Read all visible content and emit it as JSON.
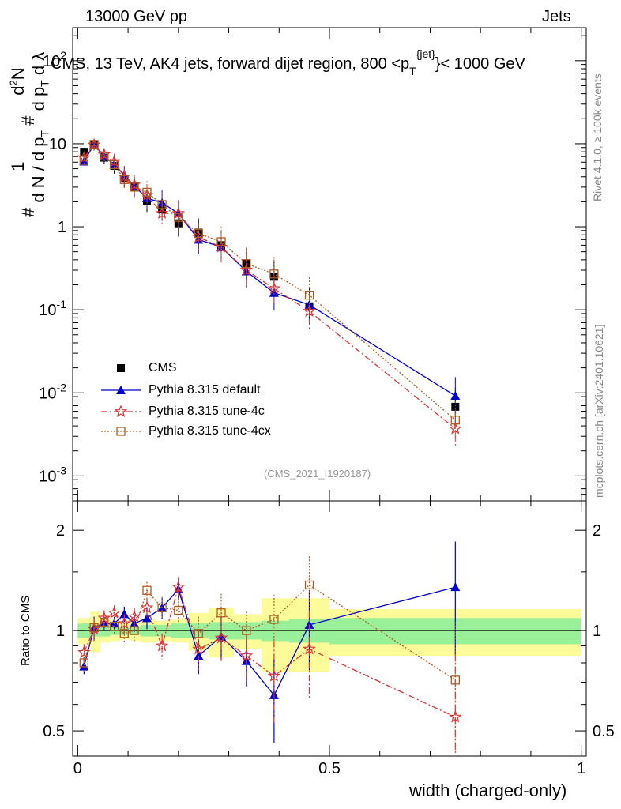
{
  "header": {
    "energy_label": "13000 GeV pp",
    "process_label": "Jets",
    "title_main": "CMS, 13 TeV, AK4 jets, forward dijet region, 800 <p",
    "title_sub": "T",
    "title_sup": "{jet}",
    "title_end": "}< 1000 GeV",
    "rivet_label": "Rivet 4.1.0, ≥ 100k events",
    "mcplots_label": "mcplots.cern.ch [arXiv:2401.10621]",
    "analysis_label": "(CMS_2021_I1920187)"
  },
  "y_title": {
    "hash1": "#",
    "one": "1",
    "dn": "d N / d p",
    "dn_sub": "T",
    "hash2": "#",
    "d2n": "d",
    "d2n_sup": "2",
    "d2n_end": "N",
    "dpt": "d p",
    "dpt_sub": "T",
    "dlambda": "d λ"
  },
  "legend": {
    "items": [
      {
        "label": "CMS",
        "color": "#000000"
      },
      {
        "label": "Pythia 8.315 default",
        "color": "#0000cc"
      },
      {
        "label": "Pythia 8.315 tune-4c",
        "color": "#dd3333"
      },
      {
        "label": "Pythia 8.315 tune-4cx",
        "color": "#b35a1f"
      }
    ]
  },
  "ratio_title": "Ratio to CMS",
  "x_title": "width (charged-only)",
  "chart_data": {
    "type": "scatter",
    "x": [
      0.0125,
      0.0325,
      0.0525,
      0.0725,
      0.0925,
      0.1125,
      0.1375,
      0.1675,
      0.2,
      0.24,
      0.285,
      0.335,
      0.39,
      0.46,
      0.75
    ],
    "main": {
      "ylabel": "1/(dN/dpT) d²N/(dpT dλ)",
      "yscale": "log",
      "ylim": [
        0.0005,
        250
      ],
      "y_ticks": [
        "10^-3",
        "10^-2",
        "10^-1",
        "1",
        "10",
        "10^2"
      ],
      "series": [
        {
          "name": "CMS",
          "values": [
            8.0,
            9.6,
            6.8,
            5.4,
            3.8,
            3.0,
            2.05,
            1.65,
            1.1,
            0.85,
            0.6,
            0.36,
            0.25,
            0.11,
            0.0068
          ]
        },
        {
          "name": "Pythia 8.315 default",
          "values": [
            6.1,
            9.8,
            7.0,
            5.6,
            4.2,
            3.1,
            2.2,
            1.95,
            1.45,
            0.7,
            0.57,
            0.29,
            0.16,
            0.115,
            0.0092
          ]
        },
        {
          "name": "Pythia 8.315 tune-4c",
          "values": [
            6.8,
            9.7,
            7.4,
            6.1,
            4.0,
            3.2,
            2.4,
            1.45,
            1.45,
            0.75,
            0.57,
            0.3,
            0.18,
            0.096,
            0.0037
          ]
        },
        {
          "name": "Pythia 8.315 tune-4cx",
          "values": [
            6.3,
            9.8,
            7.1,
            5.6,
            3.7,
            3.0,
            2.6,
            1.85,
            1.3,
            0.83,
            0.66,
            0.36,
            0.27,
            0.15,
            0.0047
          ]
        }
      ]
    },
    "ratio": {
      "ylabel": "Ratio to CMS",
      "yscale": "log",
      "ylim": [
        0.42,
        2.45
      ],
      "y_ticks": [
        "0.5",
        "1",
        "2"
      ],
      "x_ticks": [
        "0",
        "0.5",
        "1"
      ],
      "xlim": [
        -0.01,
        1.01
      ],
      "series": [
        {
          "name": "Pythia 8.315 default",
          "values": [
            0.78,
            1.02,
            1.05,
            1.05,
            1.12,
            1.05,
            1.09,
            1.17,
            1.33,
            0.84,
            0.96,
            0.81,
            0.64,
            1.04,
            1.35
          ],
          "errors": [
            0.04,
            0.08,
            0.05,
            0.05,
            0.06,
            0.06,
            0.08,
            0.09,
            0.1,
            0.1,
            0.14,
            0.13,
            0.18,
            0.28,
            0.5
          ]
        },
        {
          "name": "Pythia 8.315 tune-4c",
          "values": [
            0.86,
            1.01,
            1.09,
            1.13,
            1.05,
            1.1,
            1.17,
            0.9,
            1.35,
            0.88,
            0.95,
            0.84,
            0.73,
            0.88,
            0.55
          ],
          "errors": [
            0.05,
            0.08,
            0.06,
            0.06,
            0.07,
            0.07,
            0.08,
            0.08,
            0.1,
            0.12,
            0.14,
            0.14,
            0.2,
            0.26,
            0.3
          ]
        },
        {
          "name": "Pythia 8.315 tune-4cx",
          "values": [
            0.8,
            1.02,
            1.06,
            1.03,
            0.98,
            1.0,
            1.32,
            1.17,
            1.15,
            0.98,
            1.13,
            1.0,
            1.08,
            1.37,
            0.71
          ],
          "errors": [
            0.05,
            0.07,
            0.05,
            0.05,
            0.06,
            0.07,
            0.08,
            0.09,
            0.1,
            0.12,
            0.16,
            0.14,
            0.2,
            0.3,
            0.35
          ]
        }
      ],
      "bands": {
        "x_edges": [
          0.0,
          0.025,
          0.045,
          0.065,
          0.085,
          0.105,
          0.125,
          0.155,
          0.185,
          0.22,
          0.26,
          0.31,
          0.365,
          0.42,
          0.5,
          1.0
        ],
        "inner": [
          0.05,
          0.04,
          0.04,
          0.03,
          0.03,
          0.03,
          0.04,
          0.04,
          0.05,
          0.05,
          0.06,
          0.06,
          0.07,
          0.08,
          0.09
        ],
        "outer": [
          0.09,
          0.14,
          0.08,
          0.07,
          0.06,
          0.07,
          0.08,
          0.07,
          0.08,
          0.13,
          0.17,
          0.12,
          0.25,
          0.25,
          0.16
        ]
      }
    }
  },
  "colors": {
    "cms": "#000000",
    "default": "#0000cc",
    "tune4c": "#dd3333",
    "tune4cx": "#b35a1f",
    "band_inner": "#99f099",
    "band_outer": "#fbfb99"
  }
}
